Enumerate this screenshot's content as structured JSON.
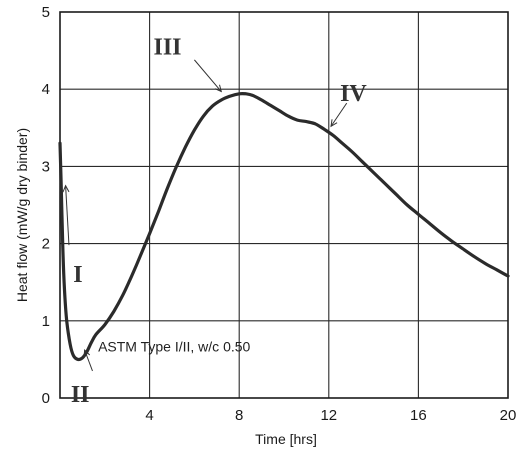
{
  "chart_data": {
    "type": "line",
    "xlabel": "Time [hrs]",
    "ylabel": "Heat flow (mW/g dry binder)",
    "xlim": [
      0,
      20
    ],
    "ylim": [
      0,
      5
    ],
    "x_ticks": [
      "4",
      "8",
      "12",
      "16",
      "20"
    ],
    "y_ticks": [
      "0",
      "1",
      "2",
      "3",
      "4",
      "5"
    ],
    "grid": true,
    "series": [
      {
        "x": [
          0.0,
          0.05,
          0.12,
          0.2,
          0.3,
          0.45,
          0.6,
          0.8,
          1.0,
          1.2,
          1.4,
          1.6,
          2.0,
          2.4,
          2.8,
          3.2,
          3.6,
          4.0,
          4.4,
          4.8,
          5.2,
          5.6,
          6.0,
          6.4,
          6.8,
          7.2,
          7.6,
          8.0,
          8.3,
          8.6,
          9.0,
          9.4,
          9.8,
          10.2,
          10.6,
          11.0,
          11.4,
          11.8,
          12.2,
          12.6,
          13.0,
          13.5,
          14.0,
          14.5,
          15.0,
          15.5,
          16.0,
          16.5,
          17.0,
          17.5,
          18.0,
          18.5,
          19.0,
          19.5,
          20.0
        ],
        "y": [
          3.3,
          2.8,
          2.0,
          1.4,
          1.0,
          0.7,
          0.55,
          0.5,
          0.52,
          0.6,
          0.72,
          0.82,
          0.95,
          1.12,
          1.33,
          1.58,
          1.85,
          2.13,
          2.42,
          2.72,
          3.0,
          3.25,
          3.47,
          3.65,
          3.78,
          3.86,
          3.91,
          3.94,
          3.94,
          3.92,
          3.86,
          3.79,
          3.72,
          3.65,
          3.6,
          3.58,
          3.55,
          3.48,
          3.4,
          3.3,
          3.2,
          3.06,
          2.92,
          2.78,
          2.64,
          2.5,
          2.38,
          2.26,
          2.14,
          2.03,
          1.93,
          1.83,
          1.74,
          1.66,
          1.58
        ]
      }
    ],
    "annotations": [
      {
        "text": "I",
        "x": 0.8,
        "y": 1.5
      },
      {
        "text": "II",
        "x": 0.9,
        "y": -0.05
      },
      {
        "text": "III",
        "x": 4.8,
        "y": 4.45
      },
      {
        "text": "IV",
        "x": 13.1,
        "y": 3.85
      },
      {
        "text": "ASTM Type I/II, w/c 0.50",
        "x": 1.7,
        "y": 0.6
      }
    ],
    "arrows": [
      {
        "from": [
          0.4,
          1.98
        ],
        "to": [
          0.25,
          2.75
        ]
      },
      {
        "from": [
          1.45,
          0.35
        ],
        "to": [
          1.1,
          0.62
        ]
      },
      {
        "from": [
          6.0,
          4.38
        ],
        "to": [
          7.2,
          3.97
        ]
      },
      {
        "from": [
          12.8,
          3.82
        ],
        "to": [
          12.1,
          3.52
        ]
      }
    ]
  }
}
